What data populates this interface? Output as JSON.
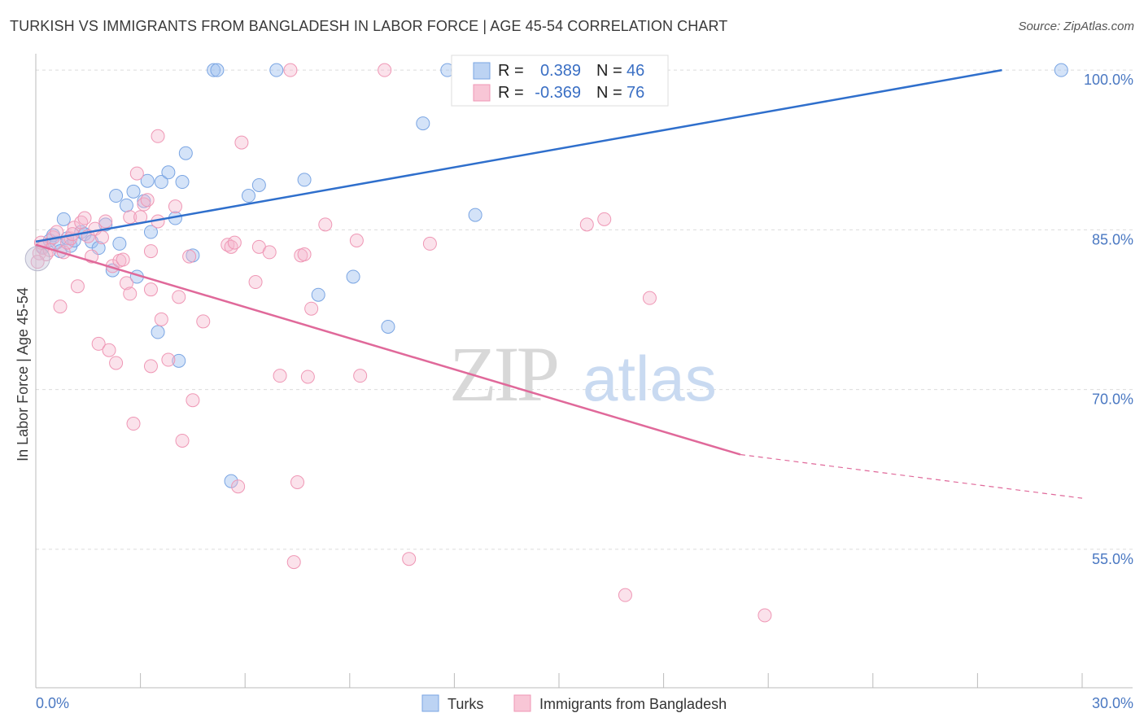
{
  "title": "TURKISH VS IMMIGRANTS FROM BANGLADESH IN LABOR FORCE | AGE 45-54 CORRELATION CHART",
  "source": "Source: ZipAtlas.com",
  "watermark": {
    "zip": "ZIP",
    "atlas": "atlas"
  },
  "legend_top": {
    "r_label": "R =",
    "n_label": "N =",
    "rows": [
      {
        "r": "0.389",
        "n": "46"
      },
      {
        "r": "-0.369",
        "n": "76"
      }
    ]
  },
  "chart_data": {
    "type": "scatter",
    "title": "TURKISH VS IMMIGRANTS FROM BANGLADESH IN LABOR FORCE | AGE 45-54 CORRELATION CHART",
    "xlabel": "",
    "ylabel": "In Labor Force | Age 45-54",
    "xlim": [
      0,
      30
    ],
    "ylim": [
      42,
      102
    ],
    "x_tick_labels": [
      "0.0%",
      "30.0%"
    ],
    "y_tick_labels": [
      "100.0%",
      "85.0%",
      "70.0%",
      "55.0%"
    ],
    "y_ticks": [
      100,
      85,
      70,
      55
    ],
    "grid": true,
    "legend_position": "bottom",
    "colors": {
      "turks": "#6f9fe0",
      "bangladesh": "#f08fae",
      "turks_line": "#2f6fcc",
      "bangladesh_line": "#e0699a"
    },
    "series": [
      {
        "name": "Turks",
        "r": 0.389,
        "n": 46,
        "trend": {
          "x": [
            0.0,
            27.7
          ],
          "y": [
            83.9,
            100.0
          ]
        },
        "points": [
          [
            0.2,
            83.4
          ],
          [
            0.4,
            84.0
          ],
          [
            0.5,
            84.5
          ],
          [
            0.6,
            83.8
          ],
          [
            0.7,
            83.0
          ],
          [
            0.8,
            86.0
          ],
          [
            0.9,
            84.2
          ],
          [
            1.0,
            83.5
          ],
          [
            1.1,
            84.0
          ],
          [
            1.3,
            84.8
          ],
          [
            1.4,
            84.6
          ],
          [
            1.6,
            83.9
          ],
          [
            1.8,
            83.3
          ],
          [
            2.0,
            85.5
          ],
          [
            2.2,
            81.2
          ],
          [
            2.3,
            88.2
          ],
          [
            2.4,
            83.7
          ],
          [
            2.6,
            87.3
          ],
          [
            2.8,
            88.6
          ],
          [
            2.9,
            80.6
          ],
          [
            3.1,
            87.7
          ],
          [
            3.2,
            89.6
          ],
          [
            3.3,
            84.8
          ],
          [
            3.5,
            75.4
          ],
          [
            3.6,
            89.5
          ],
          [
            3.8,
            90.4
          ],
          [
            4.0,
            86.1
          ],
          [
            4.1,
            72.7
          ],
          [
            4.2,
            89.5
          ],
          [
            4.3,
            92.2
          ],
          [
            4.5,
            82.6
          ],
          [
            5.1,
            100
          ],
          [
            5.2,
            100
          ],
          [
            5.6,
            61.4
          ],
          [
            6.1,
            88.2
          ],
          [
            6.4,
            89.2
          ],
          [
            6.9,
            100
          ],
          [
            7.7,
            89.7
          ],
          [
            8.1,
            78.9
          ],
          [
            9.1,
            80.6
          ],
          [
            10.1,
            75.9
          ],
          [
            11.1,
            95.0
          ],
          [
            11.8,
            100
          ],
          [
            12.1,
            100
          ],
          [
            12.6,
            86.4
          ],
          [
            29.4,
            100
          ]
        ]
      },
      {
        "name": "Immigrants from Bangladesh",
        "r": -0.369,
        "n": 76,
        "trend": {
          "x": [
            0.0,
            20.2
          ],
          "y": [
            83.6,
            63.9
          ]
        },
        "trend_dashed": {
          "x": [
            20.2,
            30.0
          ],
          "y": [
            63.9,
            59.8
          ]
        },
        "points": [
          [
            0.1,
            82.8
          ],
          [
            0.2,
            83.3
          ],
          [
            0.3,
            82.7
          ],
          [
            0.4,
            83.1
          ],
          [
            0.5,
            84.3
          ],
          [
            0.6,
            84.8
          ],
          [
            0.7,
            77.8
          ],
          [
            0.8,
            82.9
          ],
          [
            0.9,
            83.8
          ],
          [
            1.0,
            84.2
          ],
          [
            1.1,
            85.2
          ],
          [
            1.2,
            79.7
          ],
          [
            1.3,
            85.7
          ],
          [
            1.4,
            86.1
          ],
          [
            1.5,
            84.4
          ],
          [
            1.6,
            82.5
          ],
          [
            1.7,
            85.1
          ],
          [
            1.8,
            74.3
          ],
          [
            1.9,
            84.3
          ],
          [
            2.0,
            85.8
          ],
          [
            2.1,
            73.7
          ],
          [
            2.2,
            81.6
          ],
          [
            2.3,
            72.5
          ],
          [
            2.4,
            82.1
          ],
          [
            2.5,
            82.2
          ],
          [
            2.6,
            80.0
          ],
          [
            2.7,
            86.2
          ],
          [
            2.7,
            79.0
          ],
          [
            2.8,
            66.8
          ],
          [
            2.9,
            90.3
          ],
          [
            3.0,
            86.2
          ],
          [
            3.1,
            87.4
          ],
          [
            3.2,
            87.8
          ],
          [
            3.3,
            83.0
          ],
          [
            3.3,
            79.4
          ],
          [
            3.3,
            72.2
          ],
          [
            3.5,
            85.8
          ],
          [
            3.5,
            93.8
          ],
          [
            3.6,
            76.6
          ],
          [
            3.8,
            72.8
          ],
          [
            4.0,
            87.2
          ],
          [
            4.1,
            78.7
          ],
          [
            4.2,
            65.2
          ],
          [
            4.4,
            82.5
          ],
          [
            4.5,
            69.0
          ],
          [
            4.8,
            76.4
          ],
          [
            5.5,
            83.6
          ],
          [
            5.6,
            83.4
          ],
          [
            5.7,
            83.8
          ],
          [
            5.8,
            60.9
          ],
          [
            5.9,
            93.2
          ],
          [
            6.3,
            80.1
          ],
          [
            6.4,
            83.4
          ],
          [
            6.7,
            82.9
          ],
          [
            7.0,
            71.3
          ],
          [
            7.3,
            100
          ],
          [
            7.4,
            53.8
          ],
          [
            7.5,
            61.3
          ],
          [
            7.6,
            82.6
          ],
          [
            7.7,
            82.7
          ],
          [
            7.8,
            71.2
          ],
          [
            7.9,
            77.6
          ],
          [
            8.3,
            85.5
          ],
          [
            9.2,
            84.0
          ],
          [
            9.3,
            71.3
          ],
          [
            10.0,
            100
          ],
          [
            10.7,
            54.1
          ],
          [
            11.3,
            83.7
          ],
          [
            15.8,
            85.5
          ],
          [
            16.3,
            86.0
          ],
          [
            16.9,
            50.7
          ],
          [
            17.6,
            78.6
          ],
          [
            20.9,
            48.8
          ],
          [
            0.05,
            82.0
          ],
          [
            0.15,
            83.8
          ],
          [
            1.05,
            84.6
          ]
        ]
      }
    ]
  },
  "bottom_legend": [
    {
      "label": "Turks"
    },
    {
      "label": "Immigrants from Bangladesh"
    }
  ]
}
